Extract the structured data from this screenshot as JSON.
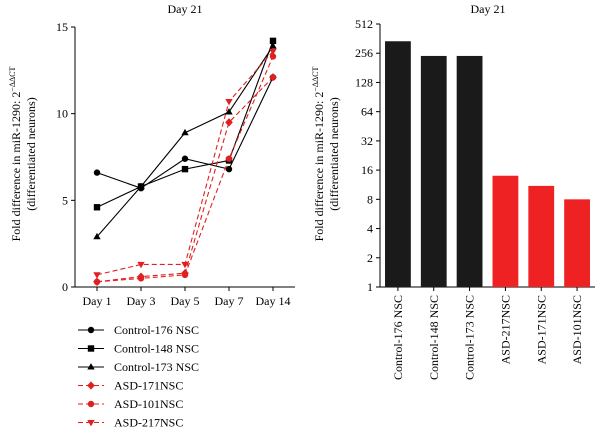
{
  "chart_data": [
    {
      "type": "line",
      "title": "Day 21",
      "ylabel_line1": "Fold difference in miR-1290: 2",
      "ylabel_sup": "−ΔΔCT",
      "ylabel_line2": "(differentiated neurons)",
      "categories": [
        "Day 1",
        "Day 3",
        "Day 5",
        "Day 7",
        "Day 14"
      ],
      "ylim": [
        0,
        15
      ],
      "yticks": [
        "0",
        "5",
        "10",
        "15"
      ],
      "grid": false,
      "legend_position": "bottom",
      "series": [
        {
          "name": "Control-176 NSC",
          "color": "#000000",
          "marker": "circle",
          "dashed": false,
          "values": [
            6.6,
            5.7,
            7.4,
            6.8,
            12.1
          ]
        },
        {
          "name": "Control-148 NSC",
          "color": "#000000",
          "marker": "square",
          "dashed": false,
          "values": [
            4.6,
            5.8,
            6.8,
            7.3,
            14.2
          ]
        },
        {
          "name": "Control-173 NSC",
          "color": "#000000",
          "marker": "triangle-up",
          "dashed": false,
          "values": [
            2.9,
            5.8,
            8.9,
            10.1,
            13.9
          ]
        },
        {
          "name": "ASD-171NSC",
          "color": "#e02020",
          "marker": "diamond",
          "dashed": true,
          "values": [
            0.3,
            0.6,
            0.8,
            9.5,
            12.1
          ]
        },
        {
          "name": "ASD-101NSC",
          "color": "#e02020",
          "marker": "circle",
          "dashed": true,
          "values": [
            0.3,
            0.5,
            0.7,
            7.4,
            13.3
          ]
        },
        {
          "name": "ASD-217NSC",
          "color": "#e02020",
          "marker": "triangle-down",
          "dashed": true,
          "values": [
            0.7,
            1.3,
            1.3,
            10.7,
            13.6
          ]
        }
      ]
    },
    {
      "type": "bar",
      "title": "Day 21",
      "ylabel_line1": "Fold difference in miR-1290: 2",
      "ylabel_sup": "−ΔΔCT",
      "ylabel_line2": "(differentiated neurons)",
      "yscale": "log2",
      "ylim": [
        1,
        512
      ],
      "yticks": [
        "1",
        "2",
        "4",
        "8",
        "16",
        "32",
        "64",
        "128",
        "256",
        "512"
      ],
      "grid": false,
      "categories": [
        "Control-176 NSC",
        "Control-148 NSC",
        "Control-173 NSC",
        "ASD-217NSC",
        "ASD-171NSC",
        "ASD-101NSC"
      ],
      "values": [
        340,
        240,
        240,
        14,
        11,
        8
      ],
      "colors": [
        "#1a1a1a",
        "#1a1a1a",
        "#1a1a1a",
        "#ee2222",
        "#ee2222",
        "#ee2222"
      ]
    }
  ]
}
